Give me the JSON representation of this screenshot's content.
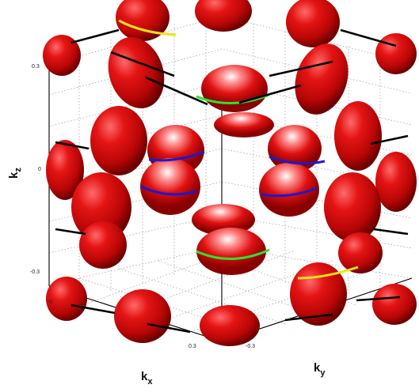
{
  "figure": {
    "axes": {
      "x": {
        "label": "k",
        "subscript": "x"
      },
      "y": {
        "label": "k",
        "subscript": "y"
      },
      "z": {
        "label": "k",
        "subscript": "z"
      }
    },
    "z_ticks": [
      "0.3",
      "0",
      "-0.3"
    ],
    "x_ticks": [
      "0.3"
    ],
    "y_ticks": [
      "-0.3"
    ],
    "left_edge_tick": "-0",
    "colors": {
      "surface": "#e01010",
      "contour_green": "#2ee02e",
      "contour_blue": "#1a1ad0",
      "contour_yellow": "#f2e21a",
      "box_edges": "#000000",
      "grid": "#9a9a9a"
    }
  }
}
